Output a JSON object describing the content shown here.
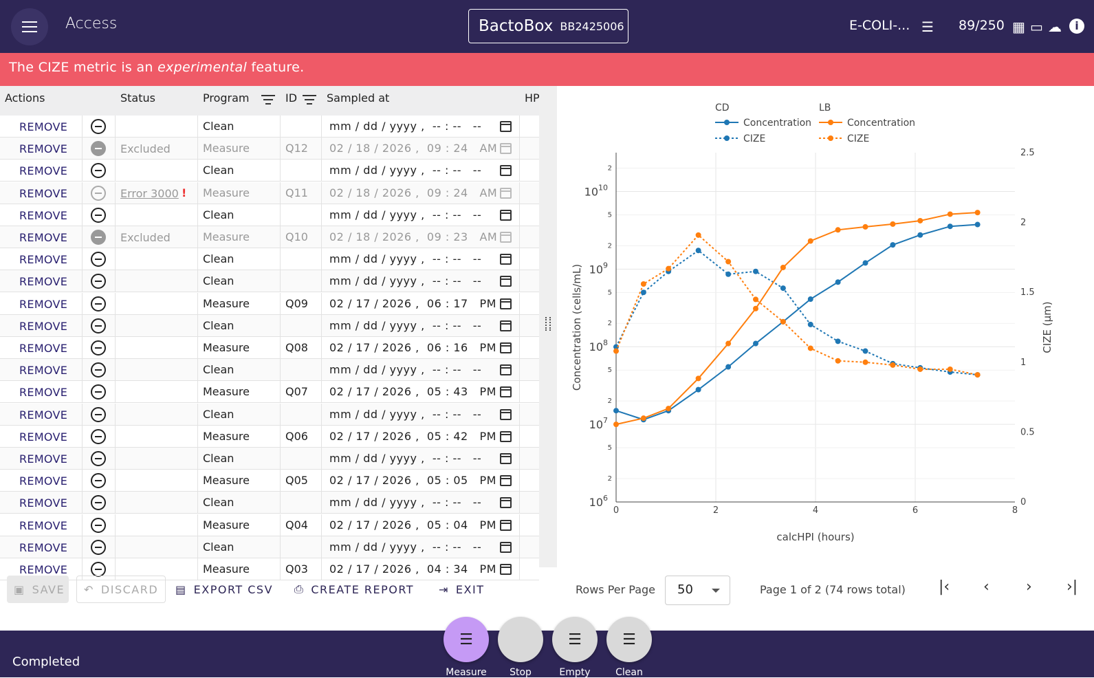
{
  "topbar": {
    "menu_icon": "hamburger-menu-icon",
    "title": "Access",
    "device_name": "BactoBox",
    "device_id": "BB2425006",
    "strain": "E-COLI-...",
    "count": "89/250",
    "icons": [
      "list-icon",
      "chip-icon",
      "computer-icon",
      "cloud-icon",
      "info-icon"
    ]
  },
  "banner": {
    "prefix": "The CIZE metric is an ",
    "emphasis": "experimental",
    "suffix": " feature."
  },
  "table": {
    "headers": {
      "actions": "Actions",
      "status": "Status",
      "program": "Program",
      "id": "ID",
      "sampled_at": "Sampled at",
      "hp": "HP"
    },
    "rows": [
      {
        "action": "REMOVE",
        "status": "",
        "program": "Clean",
        "id": "",
        "date": "mm / dd / yyyy ,  -- : --   --",
        "state": "normal"
      },
      {
        "action": "REMOVE",
        "status": "Excluded",
        "program": "Measure",
        "id": "Q12",
        "date": "02 / 18 / 2026 ,  09 : 24   AM",
        "state": "excluded"
      },
      {
        "action": "REMOVE",
        "status": "",
        "program": "Clean",
        "id": "",
        "date": "mm / dd / yyyy ,  -- : --   --",
        "state": "normal"
      },
      {
        "action": "REMOVE",
        "status": "Error 3000",
        "program": "Measure",
        "id": "Q11",
        "date": "02 / 18 / 2026 ,  09 : 24   AM",
        "state": "error"
      },
      {
        "action": "REMOVE",
        "status": "",
        "program": "Clean",
        "id": "",
        "date": "mm / dd / yyyy ,  -- : --   --",
        "state": "normal"
      },
      {
        "action": "REMOVE",
        "status": "Excluded",
        "program": "Measure",
        "id": "Q10",
        "date": "02 / 18 / 2026 ,  09 : 23   AM",
        "state": "excluded"
      },
      {
        "action": "REMOVE",
        "status": "",
        "program": "Clean",
        "id": "",
        "date": "mm / dd / yyyy ,  -- : --   --",
        "state": "normal"
      },
      {
        "action": "REMOVE",
        "status": "",
        "program": "Clean",
        "id": "",
        "date": "mm / dd / yyyy ,  -- : --   --",
        "state": "normal"
      },
      {
        "action": "REMOVE",
        "status": "",
        "program": "Measure",
        "id": "Q09",
        "date": "02 / 17 / 2026 ,  06 : 17   PM",
        "state": "normal"
      },
      {
        "action": "REMOVE",
        "status": "",
        "program": "Clean",
        "id": "",
        "date": "mm / dd / yyyy ,  -- : --   --",
        "state": "normal"
      },
      {
        "action": "REMOVE",
        "status": "",
        "program": "Measure",
        "id": "Q08",
        "date": "02 / 17 / 2026 ,  06 : 16   PM",
        "state": "normal"
      },
      {
        "action": "REMOVE",
        "status": "",
        "program": "Clean",
        "id": "",
        "date": "mm / dd / yyyy ,  -- : --   --",
        "state": "normal"
      },
      {
        "action": "REMOVE",
        "status": "",
        "program": "Measure",
        "id": "Q07",
        "date": "02 / 17 / 2026 ,  05 : 43   PM",
        "state": "normal"
      },
      {
        "action": "REMOVE",
        "status": "",
        "program": "Clean",
        "id": "",
        "date": "mm / dd / yyyy ,  -- : --   --",
        "state": "normal"
      },
      {
        "action": "REMOVE",
        "status": "",
        "program": "Measure",
        "id": "Q06",
        "date": "02 / 17 / 2026 ,  05 : 42   PM",
        "state": "normal"
      },
      {
        "action": "REMOVE",
        "status": "",
        "program": "Clean",
        "id": "",
        "date": "mm / dd / yyyy ,  -- : --   --",
        "state": "normal"
      },
      {
        "action": "REMOVE",
        "status": "",
        "program": "Measure",
        "id": "Q05",
        "date": "02 / 17 / 2026 ,  05 : 05   PM",
        "state": "normal"
      },
      {
        "action": "REMOVE",
        "status": "",
        "program": "Clean",
        "id": "",
        "date": "mm / dd / yyyy ,  -- : --   --",
        "state": "normal"
      },
      {
        "action": "REMOVE",
        "status": "",
        "program": "Measure",
        "id": "Q04",
        "date": "02 / 17 / 2026 ,  05 : 04   PM",
        "state": "normal"
      },
      {
        "action": "REMOVE",
        "status": "",
        "program": "Clean",
        "id": "",
        "date": "mm / dd / yyyy ,  -- : --   --",
        "state": "normal"
      },
      {
        "action": "REMOVE",
        "status": "",
        "program": "Measure",
        "id": "Q03",
        "date": "02 / 17 / 2026 ,  04 : 34   PM",
        "state": "normal"
      }
    ]
  },
  "chart_data": {
    "type": "line",
    "xlabel": "calcHPI (hours)",
    "ylabel": "Concentration (cells/mL)",
    "y2label": "CIZE (µm)",
    "xlim": [
      0,
      8
    ],
    "ylim": [
      6,
      10.5
    ],
    "y_scale": "log",
    "y2lim": [
      0,
      2.5
    ],
    "x_ticks": [
      "0",
      "2",
      "4",
      "6",
      "8"
    ],
    "y_ticks": [
      "10^6",
      "10^7",
      "10^8",
      "10^9",
      "10^10"
    ],
    "y2_ticks": [
      "0",
      "0.5",
      "1",
      "1.5",
      "2",
      "2.5"
    ],
    "minor_labels": [
      "2",
      "5"
    ],
    "legend_groups": [
      {
        "name": "CD",
        "color": "#1f77b4"
      },
      {
        "name": "LB",
        "color": "#ff7f0e"
      }
    ],
    "legend_placement": "top",
    "grid": true,
    "series": [
      {
        "name": "Concentration",
        "group": "CD",
        "axis": "y",
        "style": "solid",
        "color": "#1f77b4",
        "x": [
          0,
          0.55,
          1.05,
          1.65,
          2.25,
          2.8,
          3.35,
          3.9,
          4.45,
          5.0,
          5.55,
          6.1,
          6.7,
          7.25
        ],
        "y": [
          15000000.0,
          11500000.0,
          15000000.0,
          28000000.0,
          55000000.0,
          110000000.0,
          210000000.0,
          410000000.0,
          680000000.0,
          1200000000.0,
          2050000000.0,
          2750000000.0,
          3550000000.0,
          3750000000.0
        ]
      },
      {
        "name": "CIZE",
        "group": "CD",
        "axis": "y2",
        "style": "dotted",
        "color": "#1f77b4",
        "x": [
          0,
          0.55,
          1.05,
          1.65,
          2.25,
          2.8,
          3.35,
          3.9,
          4.45,
          5.0,
          5.55,
          6.1,
          6.7,
          7.25
        ],
        "y": [
          1.11,
          1.5,
          1.65,
          1.8,
          1.63,
          1.65,
          1.53,
          1.27,
          1.15,
          1.08,
          0.99,
          0.96,
          0.93,
          0.91
        ]
      },
      {
        "name": "Concentration",
        "group": "LB",
        "axis": "y",
        "style": "solid",
        "color": "#ff7f0e",
        "x": [
          0,
          0.55,
          1.05,
          1.65,
          2.25,
          2.8,
          3.35,
          3.9,
          4.45,
          5.0,
          5.55,
          6.1,
          6.7,
          7.25
        ],
        "y": [
          10000000.0,
          12000000.0,
          16000000.0,
          39000000.0,
          110000000.0,
          310000000.0,
          1050000000.0,
          2300000000.0,
          3200000000.0,
          3500000000.0,
          3800000000.0,
          4200000000.0,
          5100000000.0,
          5350000000.0
        ]
      },
      {
        "name": "CIZE",
        "group": "LB",
        "axis": "y2",
        "style": "dotted",
        "color": "#ff7f0e",
        "x": [
          0,
          0.55,
          1.05,
          1.65,
          2.25,
          2.8,
          3.35,
          3.9,
          4.45,
          5.0,
          5.55,
          6.1,
          6.7,
          7.25
        ],
        "y": [
          1.08,
          1.56,
          1.67,
          1.91,
          1.72,
          1.45,
          1.29,
          1.1,
          1.01,
          1.0,
          0.98,
          0.95,
          0.95,
          0.91
        ]
      }
    ]
  },
  "toolbar": {
    "save": "SAVE",
    "discard": "DISCARD",
    "export": "EXPORT CSV",
    "report": "CREATE REPORT",
    "exit": "EXIT",
    "rows_per_page_label": "Rows Per Page",
    "rows_per_page": "50",
    "page_info": "Page 1 of 2 (74 rows total)"
  },
  "footer": {
    "status": "Completed",
    "fabs": [
      {
        "label": "Measure",
        "color": "#c59af5",
        "icon": "list-icon"
      },
      {
        "label": "Stop",
        "color": "#d9d9d9",
        "icon": ""
      },
      {
        "label": "Empty",
        "color": "#d9d9d9",
        "icon": "list-icon"
      },
      {
        "label": "Clean",
        "color": "#d9d9d9",
        "icon": "list-icon"
      }
    ]
  }
}
